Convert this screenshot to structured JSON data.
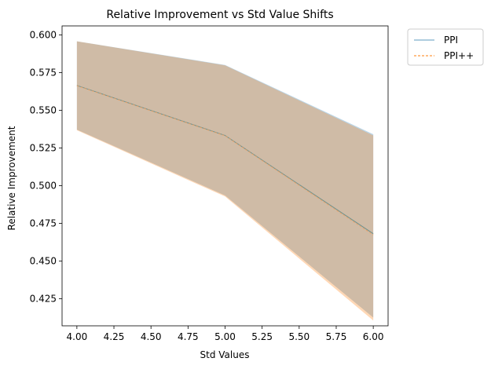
{
  "chart_data": {
    "type": "line",
    "title": "Relative Improvement vs Std Value Shifts",
    "xlabel": "Std Values",
    "ylabel": "Relative Improvement",
    "xlim": [
      3.9,
      6.1
    ],
    "ylim": [
      0.407,
      0.606
    ],
    "xticks": [
      "4.00",
      "4.25",
      "4.50",
      "4.75",
      "5.00",
      "5.25",
      "5.50",
      "5.75",
      "6.00"
    ],
    "yticks": [
      "0.425",
      "0.450",
      "0.475",
      "0.500",
      "0.525",
      "0.550",
      "0.575",
      "0.600"
    ],
    "grid": false,
    "legend_position": "outside-top-right",
    "x": [
      4.0,
      5.0,
      6.0
    ],
    "series": [
      {
        "name": "PPI",
        "values": [
          0.5665,
          0.5333,
          0.4681
        ],
        "lower": [
          0.5372,
          0.4935,
          0.4125
        ],
        "upper": [
          0.5958,
          0.5801,
          0.5341
        ],
        "color": "#1f77b4",
        "line_style": "solid"
      },
      {
        "name": "PPI++",
        "values": [
          0.5663,
          0.5331,
          0.4673
        ],
        "lower": [
          0.5368,
          0.4928,
          0.4105
        ],
        "upper": [
          0.5958,
          0.5798,
          0.5333
        ],
        "color": "#ff7f0e",
        "line_style": "dashed"
      }
    ]
  }
}
